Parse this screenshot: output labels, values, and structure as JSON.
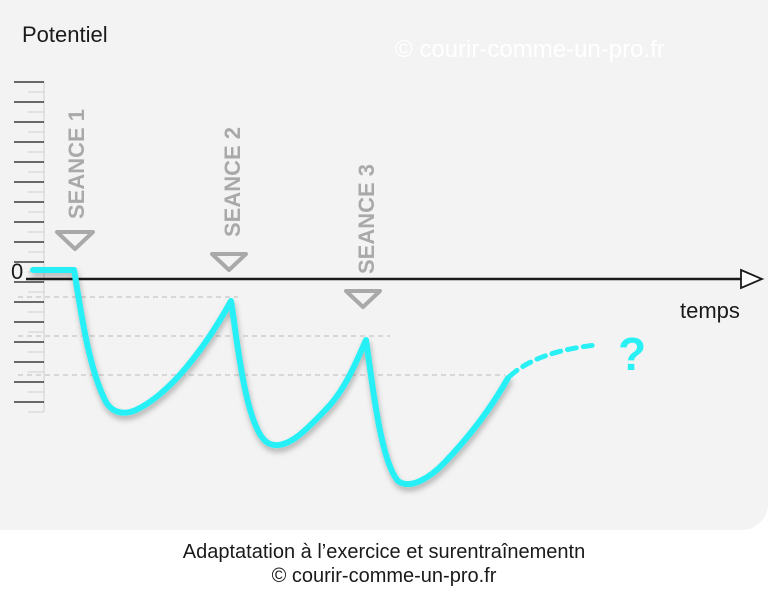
{
  "diagram": {
    "y_label": "Potentiel",
    "x_label": "temps",
    "zero_label": "0",
    "watermark": "© courir-comme-un-pro.fr",
    "sessions": [
      "SEANCE 1",
      "SEANCE 2",
      "SEANCE 3"
    ],
    "question_mark": "?",
    "curve_color": "#28f0f5",
    "marker_color": "#a9a9a9",
    "axis_color": "#1a1a1a"
  },
  "caption": {
    "line1": "Adaptatation à l’exercice et surentraînementn",
    "line2": "© courir-comme-un-pro.fr"
  }
}
